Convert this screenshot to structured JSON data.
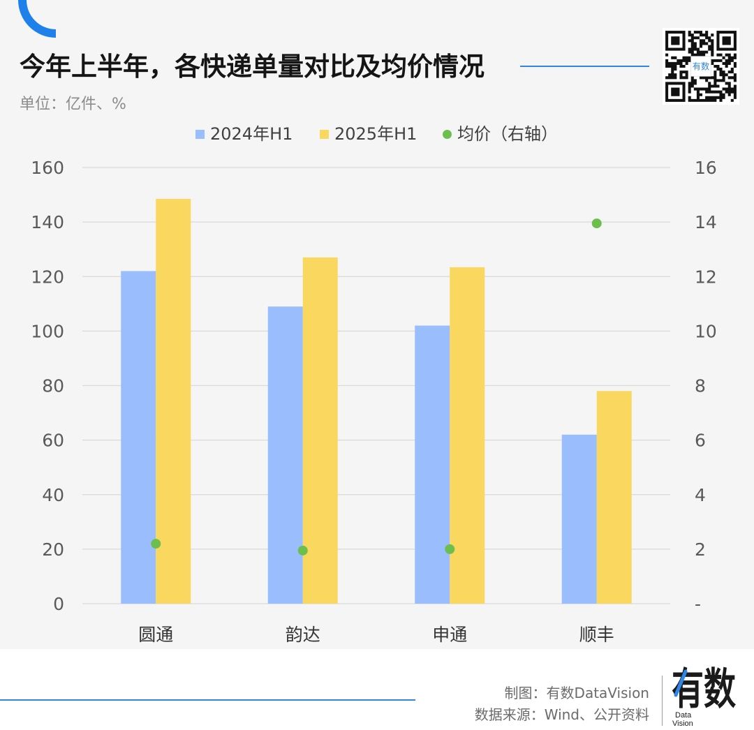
{
  "chart_data": {
    "type": "bar",
    "title": "今年上半年，各快递单量对比及均价情况",
    "unit_note": "单位：亿件、%",
    "categories": [
      "圆通",
      "韵达",
      "申通",
      "顺丰"
    ],
    "series": [
      {
        "name": "2024年H1",
        "type": "bar",
        "axis": "left",
        "color": "#99bdfd",
        "values": [
          122,
          109,
          102,
          62
        ]
      },
      {
        "name": "2025年H1",
        "type": "bar",
        "axis": "left",
        "color": "#fad75f",
        "values": [
          148.5,
          127,
          123.4,
          78
        ]
      },
      {
        "name": "均价（右轴）",
        "type": "scatter",
        "axis": "right",
        "color": "#6cbf4c",
        "values": [
          2.2,
          1.95,
          2.0,
          13.95
        ]
      }
    ],
    "y_left": {
      "min": 0,
      "max": 160,
      "ticks": [
        "0",
        "20",
        "40",
        "60",
        "80",
        "100",
        "120",
        "140",
        "160"
      ]
    },
    "y_right": {
      "min": 0,
      "max": 16,
      "ticks": [
        "-",
        "2",
        "4",
        "6",
        "8",
        "10",
        "12",
        "14",
        "16"
      ]
    },
    "grid": true,
    "legend_position": "top"
  },
  "footer": {
    "credit": "制图：有数DataVision",
    "source": "数据来源：Wind、公开资料"
  },
  "brand": {
    "name": "有数",
    "sub_top": "Data",
    "sub_bottom": "Vision",
    "qr_badge": "有数"
  },
  "colors": {
    "accent": "#2f86e6",
    "background": "#f5f5f5",
    "grid": "#d9d9d9",
    "text": "#1a1a1a",
    "muted": "#8c8c8c"
  }
}
